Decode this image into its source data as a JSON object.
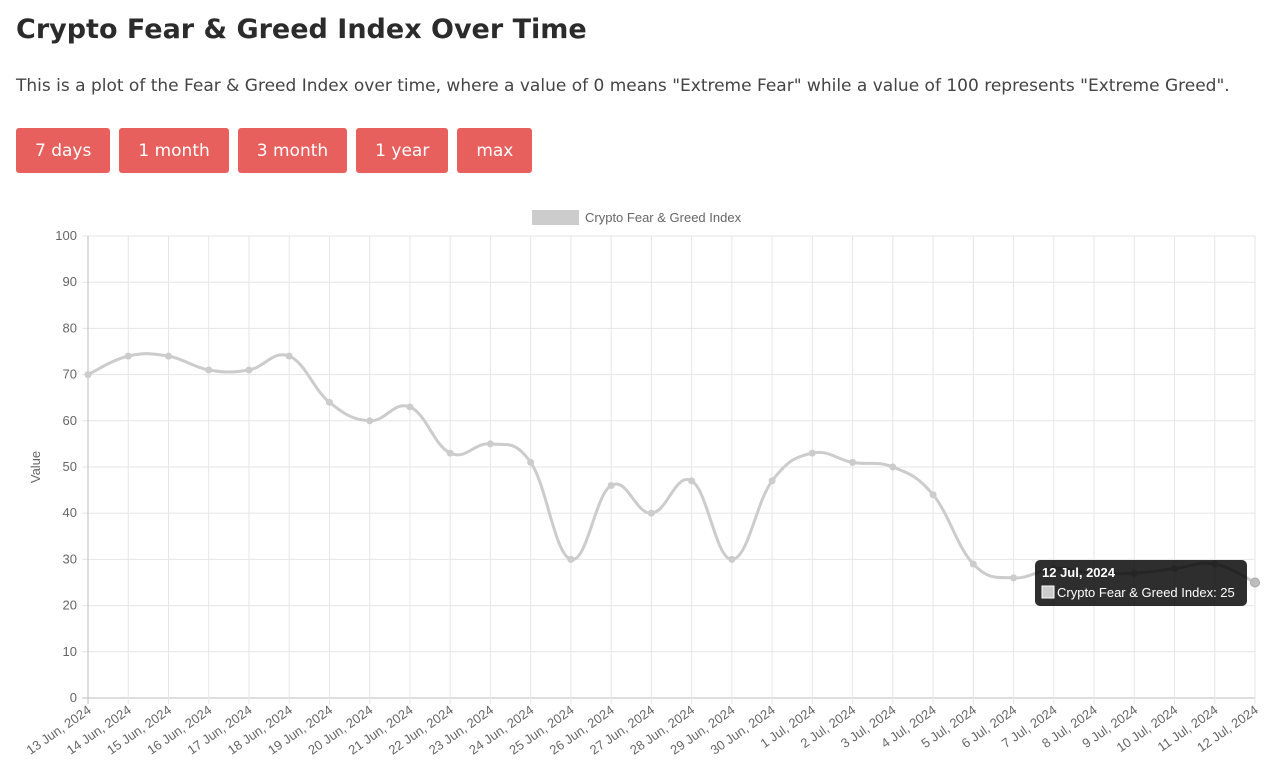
{
  "page": {
    "title": "Crypto Fear & Greed Index Over Time",
    "description": "This is a plot of the Fear & Greed Index over time, where a value of 0 means \"Extreme Fear\" while a value of 100 represents \"Extreme Greed\"."
  },
  "buttons": [
    {
      "label": "7 days"
    },
    {
      "label": "1 month"
    },
    {
      "label": "3 month"
    },
    {
      "label": "1 year"
    },
    {
      "label": "max"
    }
  ],
  "chart_data": {
    "type": "line",
    "title": "",
    "xlabel": "",
    "ylabel": "Value",
    "ylim": [
      0,
      100
    ],
    "yticks": [
      0,
      10,
      20,
      30,
      40,
      50,
      60,
      70,
      80,
      90,
      100
    ],
    "grid": true,
    "legend_position": "top-center",
    "categories": [
      "13 Jun, 2024",
      "14 Jun, 2024",
      "15 Jun, 2024",
      "16 Jun, 2024",
      "17 Jun, 2024",
      "18 Jun, 2024",
      "19 Jun, 2024",
      "20 Jun, 2024",
      "21 Jun, 2024",
      "22 Jun, 2024",
      "23 Jun, 2024",
      "24 Jun, 2024",
      "25 Jun, 2024",
      "26 Jun, 2024",
      "27 Jun, 2024",
      "28 Jun, 2024",
      "29 Jun, 2024",
      "30 Jun, 2024",
      "1 Jul, 2024",
      "2 Jul, 2024",
      "3 Jul, 2024",
      "4 Jul, 2024",
      "5 Jul, 2024",
      "6 Jul, 2024",
      "7 Jul, 2024",
      "8 Jul, 2024",
      "9 Jul, 2024",
      "10 Jul, 2024",
      "11 Jul, 2024",
      "12 Jul, 2024"
    ],
    "series": [
      {
        "name": "Crypto Fear & Greed Index",
        "color": "#cccccc",
        "values": [
          70,
          74,
          74,
          71,
          71,
          74,
          64,
          60,
          63,
          53,
          55,
          51,
          30,
          46,
          40,
          47,
          30,
          47,
          53,
          51,
          50,
          44,
          29,
          26,
          28,
          27,
          27,
          28,
          29,
          25
        ]
      }
    ],
    "tooltip": {
      "title": "12 Jul, 2024",
      "label": "Crypto Fear & Greed Index: 25"
    }
  }
}
